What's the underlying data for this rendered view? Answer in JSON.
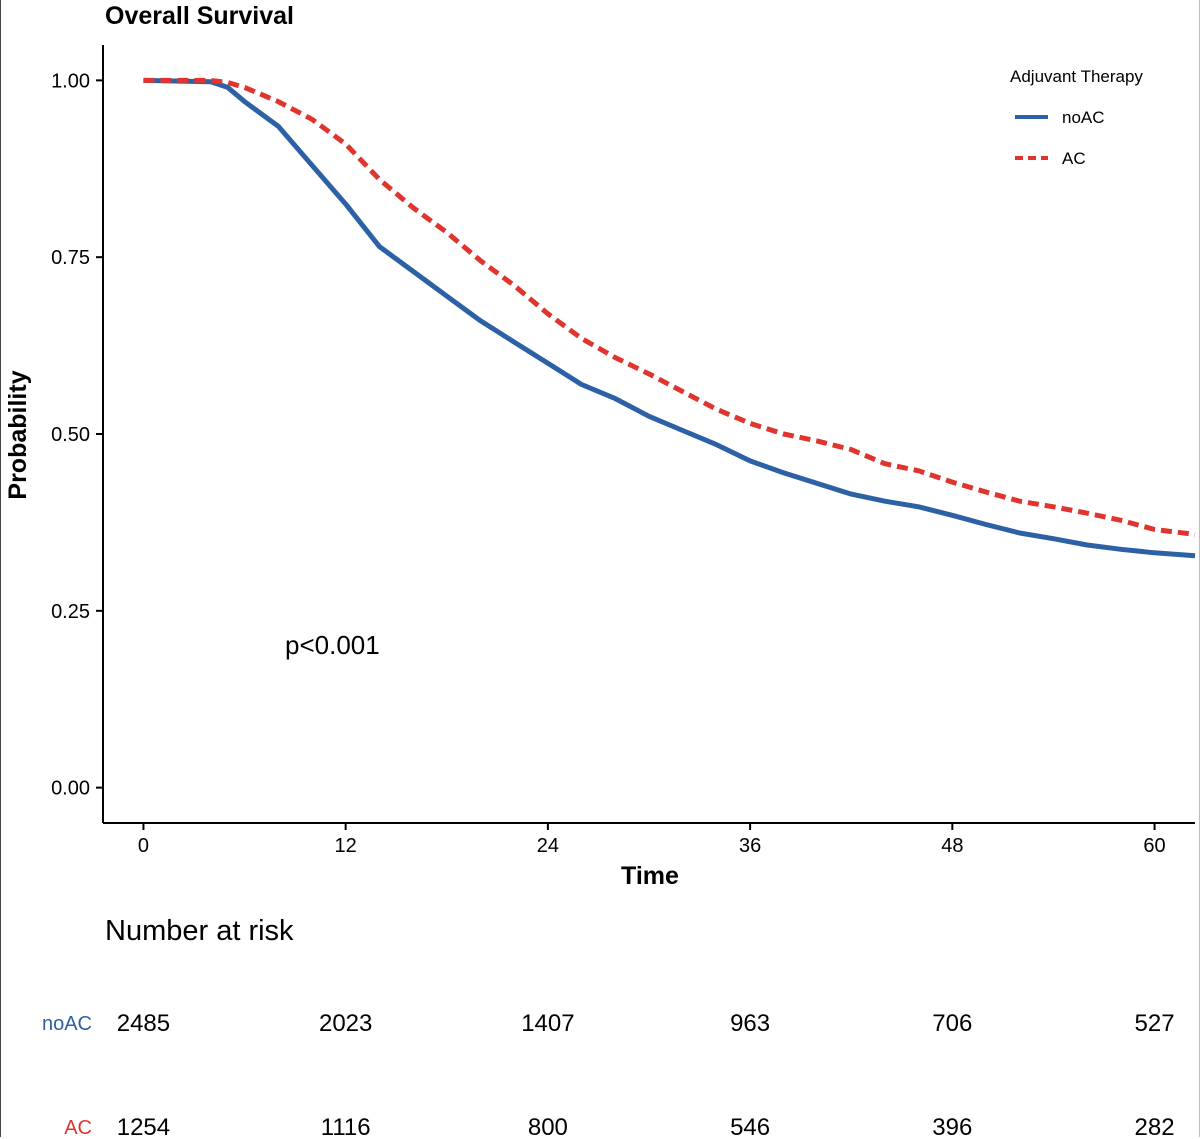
{
  "chart_data": {
    "type": "line",
    "title": "Overall Survival",
    "xlabel": "Time",
    "ylabel": "Probability",
    "xlim": [
      -2.4,
      62.4
    ],
    "ylim": [
      -0.05,
      1.05
    ],
    "x_ticks": [
      0,
      12,
      24,
      36,
      48,
      60
    ],
    "y_ticks": [
      0.0,
      0.25,
      0.5,
      0.75,
      1.0
    ],
    "y_tick_labels": [
      "0.00",
      "0.25",
      "0.50",
      "0.75",
      "1.00"
    ],
    "legend": {
      "title": "Adjuvant Therapy",
      "position": "top-right"
    },
    "annotation": "p<0.001",
    "series": [
      {
        "name": "noAC",
        "color": "#2d61a5",
        "style": "solid",
        "x": [
          0,
          4,
          5,
          6,
          8,
          10,
          12,
          14,
          16,
          18,
          20,
          22,
          24,
          26,
          28,
          30,
          32,
          34,
          36,
          38,
          40,
          42,
          44,
          46,
          48,
          50,
          52,
          54,
          56,
          58,
          60,
          62.4
        ],
        "y": [
          1.0,
          0.998,
          0.99,
          0.97,
          0.935,
          0.88,
          0.825,
          0.765,
          0.73,
          0.695,
          0.66,
          0.63,
          0.6,
          0.57,
          0.55,
          0.525,
          0.505,
          0.485,
          0.462,
          0.445,
          0.43,
          0.415,
          0.405,
          0.397,
          0.385,
          0.372,
          0.36,
          0.352,
          0.343,
          0.337,
          0.332,
          0.328
        ]
      },
      {
        "name": "AC",
        "color": "#e0342f",
        "style": "dashed",
        "x": [
          0,
          4,
          5,
          6,
          8,
          10,
          12,
          14,
          16,
          18,
          20,
          22,
          24,
          26,
          28,
          30,
          32,
          34,
          36,
          38,
          40,
          42,
          44,
          46,
          48,
          50,
          52,
          54,
          56,
          58,
          60,
          62.4
        ],
        "y": [
          1.0,
          1.0,
          0.997,
          0.99,
          0.97,
          0.945,
          0.91,
          0.86,
          0.82,
          0.785,
          0.745,
          0.71,
          0.67,
          0.635,
          0.608,
          0.585,
          0.56,
          0.535,
          0.515,
          0.5,
          0.49,
          0.478,
          0.458,
          0.448,
          0.432,
          0.418,
          0.405,
          0.397,
          0.388,
          0.378,
          0.365,
          0.358
        ]
      }
    ]
  },
  "risk_table": {
    "title": "Number at risk",
    "times": [
      0,
      12,
      24,
      36,
      48,
      60
    ],
    "rows": [
      {
        "label": "noAC",
        "color": "#2d61a5",
        "values": [
          "2485",
          "2023",
          "1407",
          "963",
          "706",
          "527"
        ]
      },
      {
        "label": "AC",
        "color": "#e0342f",
        "values": [
          "1254",
          "1116",
          "800",
          "546",
          "396",
          "282"
        ]
      }
    ]
  }
}
